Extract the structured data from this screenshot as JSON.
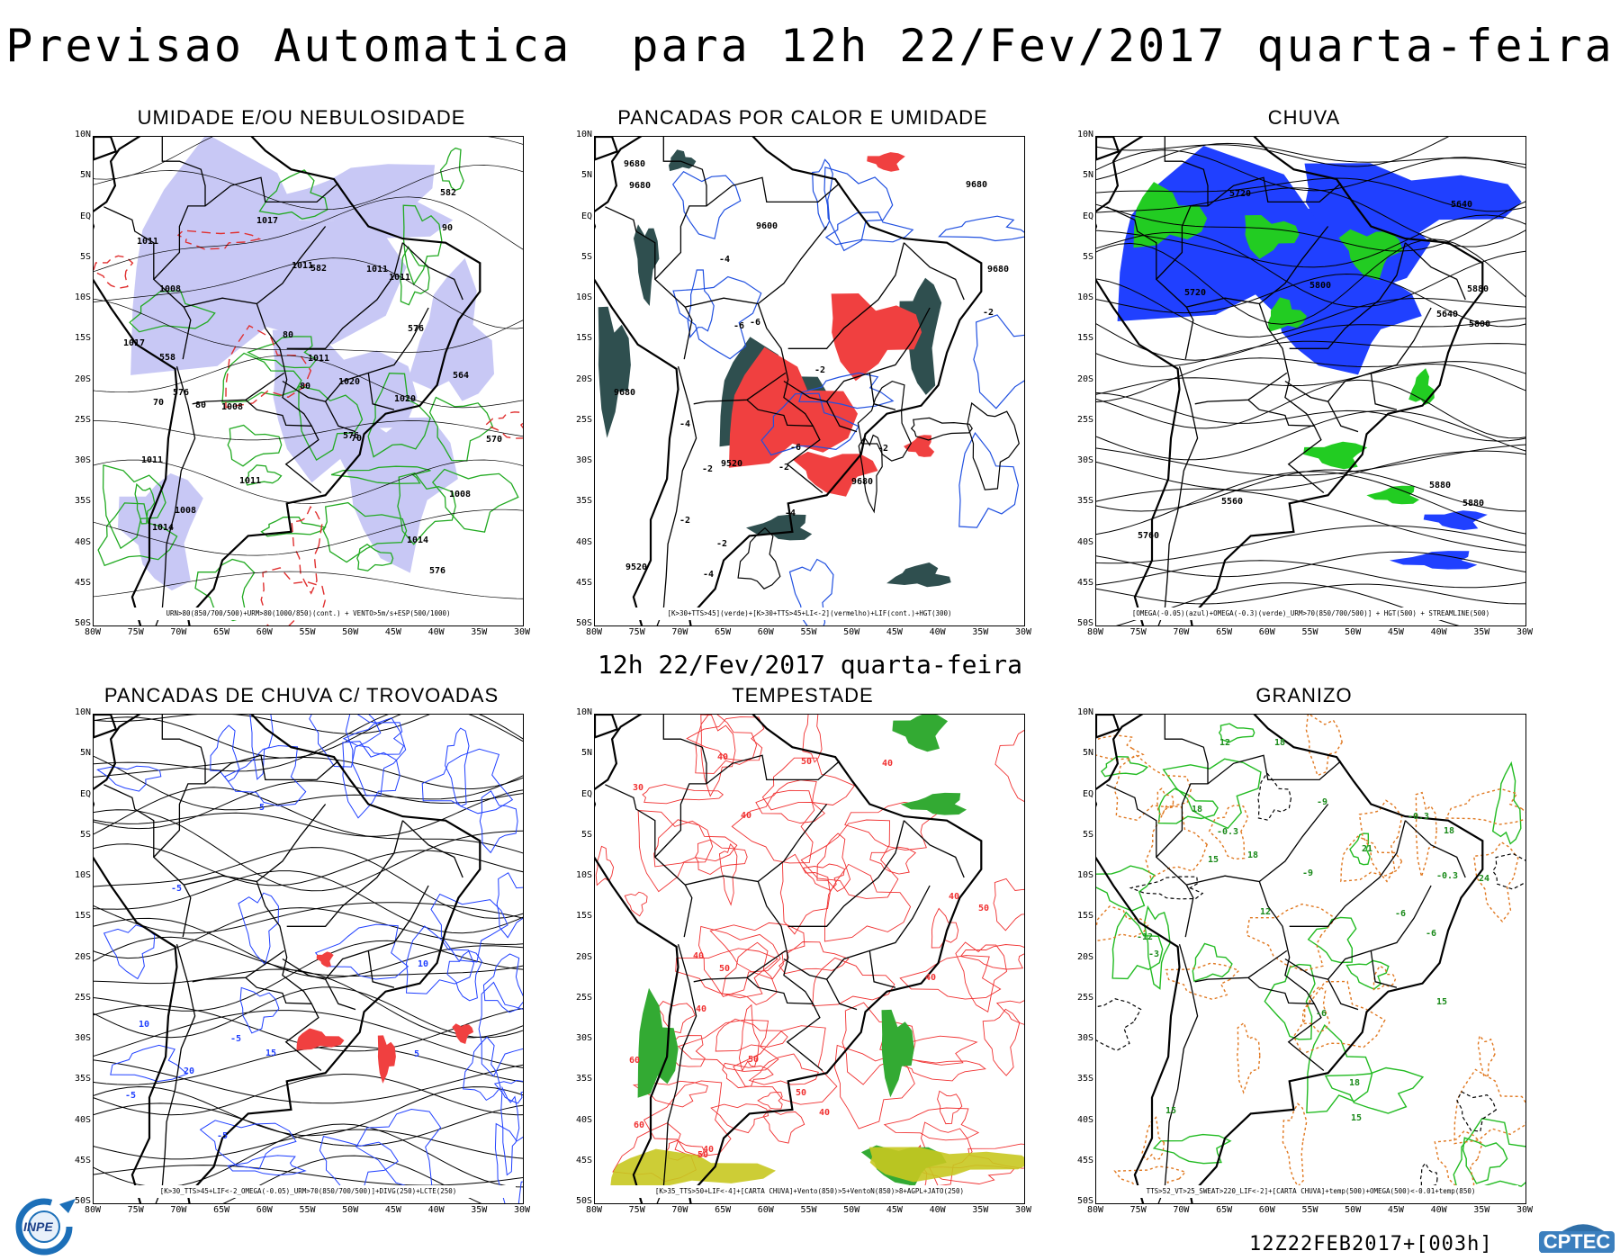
{
  "title": "Previsao Automatica  para 12h 22/Fev/2017 quarta-feira",
  "subtitle": "12h 22/Fev/2017 quarta-feira",
  "footer": "12Z22FEB2017+[003h]",
  "logos": {
    "left": "INPE",
    "right": "CPTEC"
  },
  "axes": {
    "lat_ticks": [
      "10N",
      "5N",
      "EQ",
      "5S",
      "10S",
      "15S",
      "20S",
      "25S",
      "30S",
      "35S",
      "40S",
      "45S",
      "50S"
    ],
    "lon_ticks": [
      "80W",
      "75W",
      "70W",
      "65W",
      "60W",
      "55W",
      "50W",
      "45W",
      "40W",
      "35W",
      "30W"
    ]
  },
  "panels": [
    {
      "id": "umidade",
      "title": "UMIDADE E/OU NEBULOSIDADE",
      "caption": "URN>80(850/700/500)+URM>80(1000/850)(cont.) + VENTO>5m/s+ESP(500/1000)",
      "colors": [
        "#c8c8f5",
        "#22aa22",
        "#e03030",
        "#000000"
      ],
      "labels": [
        "576",
        "576",
        "576",
        "1011",
        "1008",
        "1008",
        "1008",
        "1008",
        "1011",
        "1011",
        "1011",
        "1014",
        "1011",
        "1017",
        "1020",
        "1011",
        "1020",
        "1011",
        "1017",
        "1014",
        "582",
        "582",
        "576",
        "570",
        "564",
        "558",
        "80",
        "80",
        "80",
        "90",
        "70",
        "70"
      ]
    },
    {
      "id": "pancadas",
      "title": "PANCADAS POR CALOR E UMIDADE",
      "caption": "[K>30+TTS>45](verde)+[K>30+TTS>45+LI<-2](vermelho)+LIF(cont.)+HGT(300)",
      "colors": [
        "#2f4f4f",
        "#f04040",
        "#2050e0",
        "#000000"
      ],
      "labels": [
        "9680",
        "9680",
        "9680",
        "9680",
        "9680",
        "9680",
        "9600",
        "9520",
        "9520",
        "-2",
        "-2",
        "-2",
        "-4",
        "-4",
        "-6",
        "-6",
        "-2",
        "-2",
        "-4",
        "-6",
        "-2",
        "-4",
        "-2"
      ]
    },
    {
      "id": "chuva",
      "title": "CHUVA",
      "caption": "[OMEGA(-0.05)(azul)+OMEGA(-0.3)(verde)_URM>70(850/700/500)] + HGT(500) + STREAMLINE(500)",
      "colors": [
        "#2040ff",
        "#22cc22",
        "#000000"
      ],
      "labels": [
        "5880",
        "5880",
        "5880",
        "5800",
        "5760",
        "5720",
        "5640",
        "5560",
        "5640",
        "5720",
        "5800"
      ]
    },
    {
      "id": "trovoadas",
      "title": "PANCADAS DE CHUVA C/ TROVOADAS",
      "caption": "[K>30_TTS>45+LIF<-2_OMEGA(-0.05)_URM>70(850/700/500)]+DIVG(250)+LCTE(250)",
      "colors": [
        "#2040ff",
        "#f04040",
        "#000000"
      ],
      "labels": [
        "-5",
        "5",
        "-5",
        "5",
        "-5",
        "10",
        "10",
        "-5",
        "20",
        "15"
      ]
    },
    {
      "id": "tempestade",
      "title": "TEMPESTADE",
      "caption": "[K>35_TTS>50+LIF<-4]+[CARTA CHUVA]+Vento(850)>5+VentoN(850)>8+AGPL+JATO(250)",
      "colors": [
        "#f03030",
        "#33aa33",
        "#c8c820",
        "#993399"
      ],
      "labels": [
        "40",
        "40",
        "40",
        "50",
        "50",
        "50",
        "40",
        "40",
        "60",
        "40",
        "40",
        "50",
        "40",
        "50",
        "50",
        "40",
        "30",
        "60"
      ]
    },
    {
      "id": "granizo",
      "title": "GRANIZO",
      "caption": "TTS>52_VT>25_SWEAT>220_LIF<-2]+[CARTA CHUVA]+temp(500)+OMEGA(500)<-0.01+temp(850)",
      "colors": [
        "#22bb22",
        "#e07820",
        "#000000"
      ],
      "labels": [
        "18",
        "-6",
        "-3",
        "15",
        "18",
        "-6",
        "-9",
        "-0.3",
        "-0.3",
        "15",
        "18",
        "12",
        "-9",
        "-6",
        "21",
        "18",
        "24",
        "15",
        "18",
        "15",
        "12",
        "-0.3",
        "-12"
      ]
    }
  ]
}
